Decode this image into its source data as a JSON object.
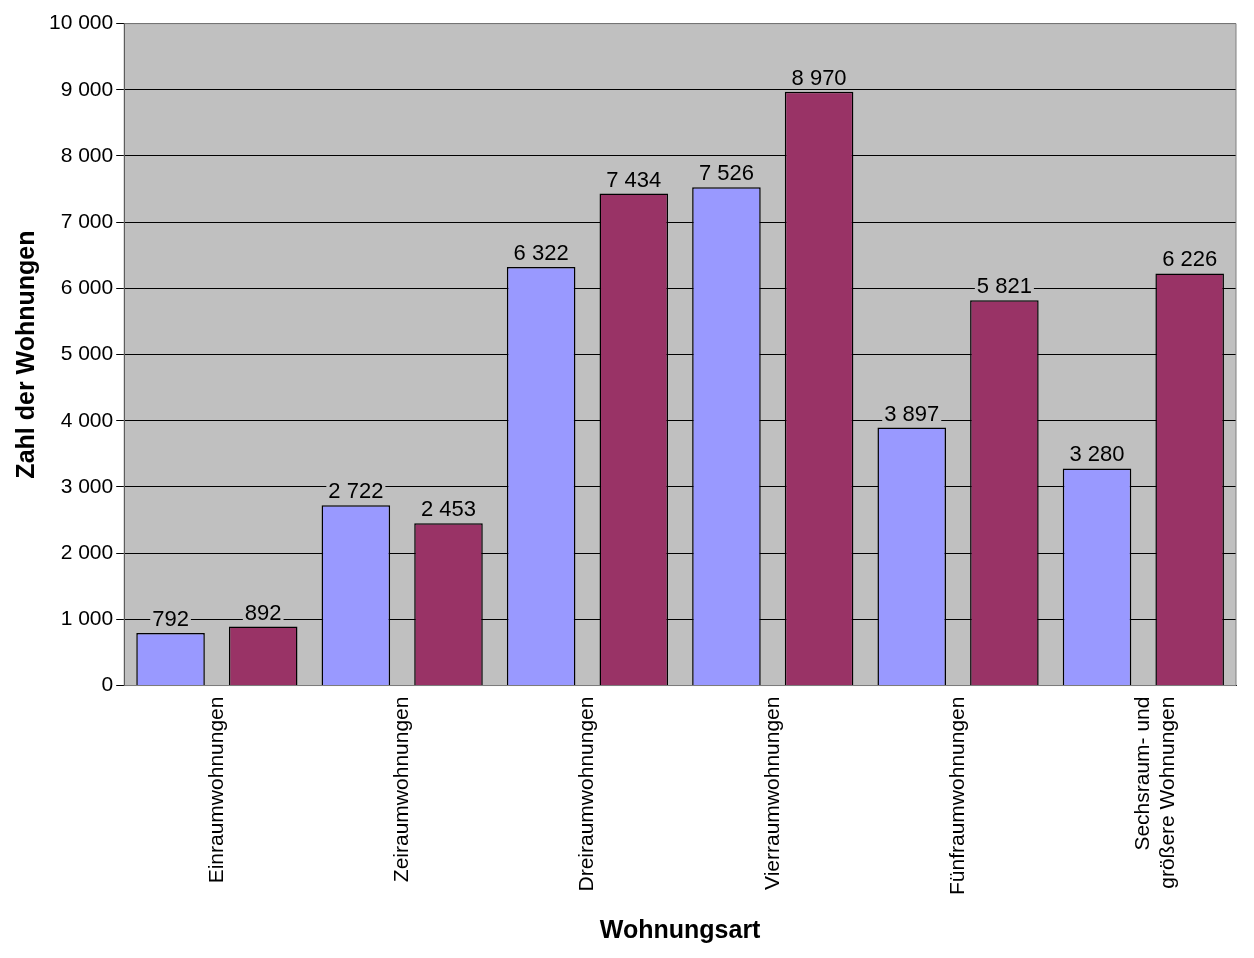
{
  "chart_data": {
    "type": "bar",
    "xlabel": "Wohnungsart",
    "ylabel": "Zahl der Wohnungen",
    "categories": [
      "Einraumwohnungen",
      "Zeiraumwohnungen",
      "Dreiraumwohnungen",
      "Vierraumwohnungen",
      "Fünfraumwohnungen",
      "Sechsraum- und größere Wohnungen"
    ],
    "series": [
      {
        "color": "#9999ff",
        "values": [
          792,
          2722,
          6322,
          7526,
          3897,
          3280
        ],
        "value_labels": [
          "792",
          "2 722",
          "6 322",
          "7 526",
          "3 897",
          "3 280"
        ]
      },
      {
        "color": "#993366",
        "values": [
          892,
          2453,
          7434,
          8970,
          5821,
          6226
        ],
        "value_labels": [
          "892",
          "2 453",
          "7 434",
          "8 970",
          "5 821",
          "6 226"
        ]
      }
    ],
    "ylim": [
      0,
      10000
    ],
    "yticks": [
      0,
      {
        "value": 1000,
        "label": "1 000"
      },
      {
        "value": 2000,
        "label": "2 000"
      },
      {
        "value": 3000,
        "label": "3 000"
      },
      {
        "value": 4000,
        "label": "4 000"
      },
      {
        "value": 5000,
        "label": "5 000"
      },
      {
        "value": 6000,
        "label": "6 000"
      },
      {
        "value": 7000,
        "label": "7 000"
      },
      {
        "value": 8000,
        "label": "8 000"
      },
      {
        "value": 9000,
        "label": "9 000"
      },
      {
        "value": 10000,
        "label": "10 000"
      }
    ],
    "grid": "y",
    "legend": false
  }
}
